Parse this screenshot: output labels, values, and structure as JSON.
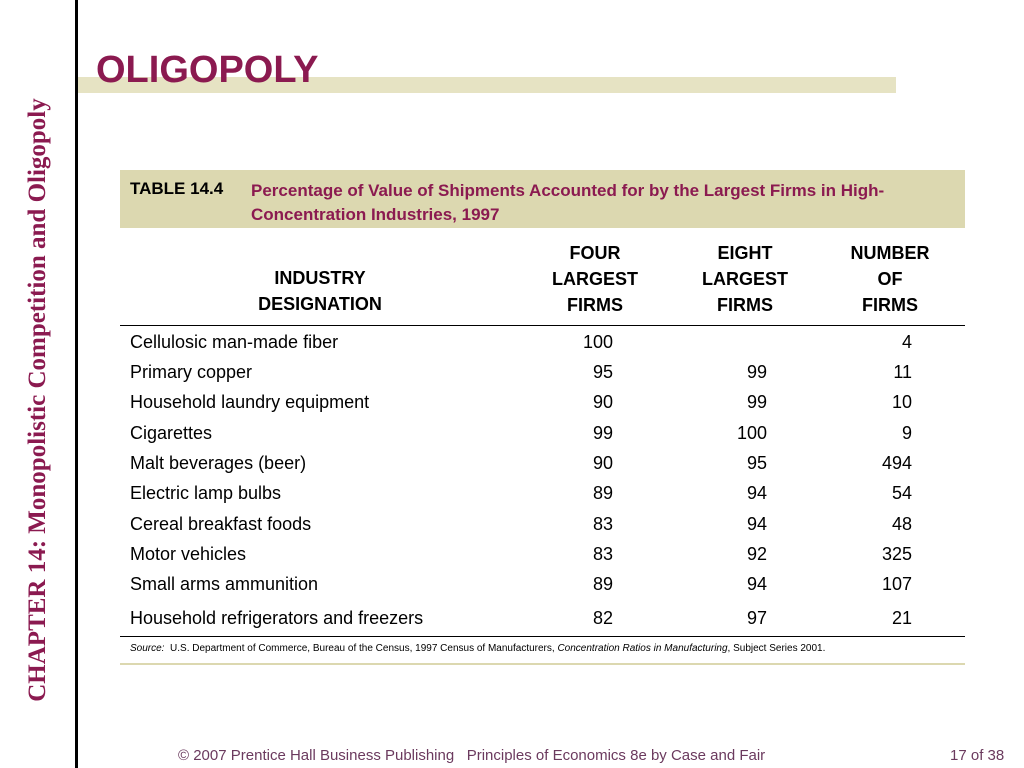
{
  "side_title": "CHAPTER 14:  Monopolistic Competition and Oligopoly",
  "slide_title": "OLIGOPOLY",
  "table": {
    "number": "TABLE 14.4",
    "caption": "Percentage of Value of Shipments Accounted for by the Largest Firms in High-Concentration Industries, 1997",
    "headers": {
      "industry_line1": "INDUSTRY",
      "industry_line2": "DESIGNATION",
      "four_line1": "FOUR",
      "four_line2": "LARGEST",
      "four_line3": "FIRMS",
      "eight_line1": "EIGHT",
      "eight_line2": "LARGEST",
      "eight_line3": "FIRMS",
      "number_line1": "NUMBER",
      "number_line2": "OF",
      "number_line3": "FIRMS"
    },
    "rows": [
      {
        "industry": "Cellulosic man-made fiber",
        "four": "100",
        "eight": "",
        "firms": "4"
      },
      {
        "industry": "Primary copper",
        "four": "95",
        "eight": "99",
        "firms": "11"
      },
      {
        "industry": "Household laundry equipment",
        "four": "90",
        "eight": "99",
        "firms": "10"
      },
      {
        "industry": "Cigarettes",
        "four": "99",
        "eight": "100",
        "firms": "9"
      },
      {
        "industry": "Malt beverages (beer)",
        "four": "90",
        "eight": "95",
        "firms": "494"
      },
      {
        "industry": "Electric lamp bulbs",
        "four": "89",
        "eight": "94",
        "firms": "54"
      },
      {
        "industry": "Cereal breakfast foods",
        "four": "83",
        "eight": "94",
        "firms": "48"
      },
      {
        "industry": "Motor vehicles",
        "four": "83",
        "eight": "92",
        "firms": "325"
      },
      {
        "industry": "Small arms ammunition",
        "four": "89",
        "eight": "94",
        "firms": "107"
      },
      {
        "industry": "Household refrigerators and freezers",
        "four": "82",
        "eight": "97",
        "firms": "21"
      }
    ],
    "source": {
      "label": "Source:",
      "text1": "U.S. Department of Commerce, Bureau of the Census, 1997 Census of Manufacturers,",
      "italic": "Concentration Ratios in Manufacturing",
      "text2": ", Subject Series 2001."
    }
  },
  "footer": {
    "left": "© 2007 Prentice Hall Business Publishing   Principles of Economics 8e by Case and Fair",
    "right": "17 of 38"
  },
  "colors": {
    "accent": "#8b1a50",
    "caption_bg": "#dcd8b0",
    "title_bar": "#e6e3c3"
  }
}
